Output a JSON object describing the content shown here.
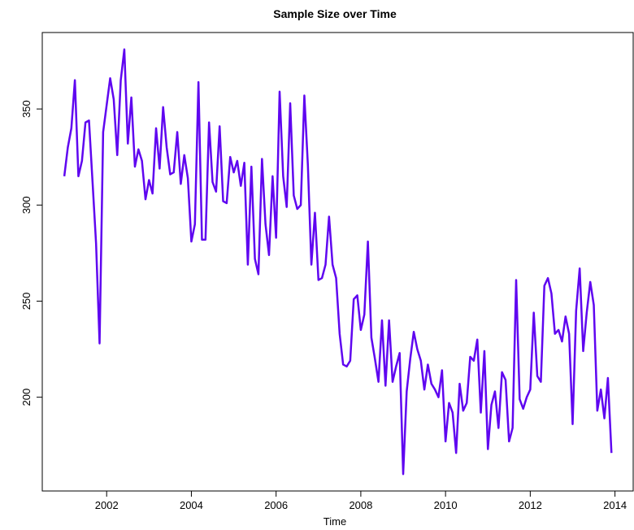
{
  "chart_data": {
    "type": "line",
    "title": "Sample Size over Time",
    "x_label": "Time",
    "x": [
      2001,
      2001.083,
      2001.167,
      2001.25,
      2001.333,
      2001.417,
      2001.5,
      2001.583,
      2001.667,
      2001.75,
      2001.833,
      2001.917,
      2002,
      2002.083,
      2002.167,
      2002.25,
      2002.333,
      2002.417,
      2002.5,
      2002.583,
      2002.667,
      2002.75,
      2002.833,
      2002.917,
      2003,
      2003.083,
      2003.167,
      2003.25,
      2003.333,
      2003.417,
      2003.5,
      2003.583,
      2003.667,
      2003.75,
      2003.833,
      2003.917,
      2004,
      2004.083,
      2004.167,
      2004.25,
      2004.333,
      2004.417,
      2004.5,
      2004.583,
      2004.667,
      2004.75,
      2004.833,
      2004.917,
      2005,
      2005.083,
      2005.167,
      2005.25,
      2005.333,
      2005.417,
      2005.5,
      2005.583,
      2005.667,
      2005.75,
      2005.833,
      2005.917,
      2006,
      2006.083,
      2006.167,
      2006.25,
      2006.333,
      2006.417,
      2006.5,
      2006.583,
      2006.667,
      2006.75,
      2006.833,
      2006.917,
      2007,
      2007.083,
      2007.167,
      2007.25,
      2007.333,
      2007.417,
      2007.5,
      2007.583,
      2007.667,
      2007.75,
      2007.833,
      2007.917,
      2008,
      2008.083,
      2008.167,
      2008.25,
      2008.333,
      2008.417,
      2008.5,
      2008.583,
      2008.667,
      2008.75,
      2008.833,
      2008.917,
      2009,
      2009.083,
      2009.167,
      2009.25,
      2009.333,
      2009.417,
      2009.5,
      2009.583,
      2009.667,
      2009.75,
      2009.833,
      2009.917,
      2010,
      2010.083,
      2010.167,
      2010.25,
      2010.333,
      2010.417,
      2010.5,
      2010.583,
      2010.667,
      2010.75,
      2010.833,
      2010.917,
      2011,
      2011.083,
      2011.167,
      2011.25,
      2011.333,
      2011.417,
      2011.5,
      2011.583,
      2011.667,
      2011.75,
      2011.833,
      2011.917,
      2012,
      2012.083,
      2012.167,
      2012.25,
      2012.333,
      2012.417,
      2012.5,
      2012.583,
      2012.667,
      2012.75,
      2012.833,
      2012.917,
      2013,
      2013.083,
      2013.167,
      2013.25,
      2013.333,
      2013.417,
      2013.5,
      2013.583,
      2013.667,
      2013.75,
      2013.833,
      2013.917
    ],
    "series": [
      {
        "color": "#5f06f0",
        "values": [
          315,
          330,
          340,
          365,
          315,
          323,
          343,
          344,
          312,
          280,
          228,
          338,
          352,
          366,
          355,
          326,
          365,
          381,
          332,
          356,
          320,
          329,
          323,
          303,
          313,
          306,
          340,
          319,
          351,
          330,
          316,
          317,
          338,
          311,
          326,
          314,
          281,
          290,
          364,
          282,
          282,
          343,
          312,
          307,
          341,
          302,
          301,
          325,
          317,
          323,
          310,
          322,
          269,
          320,
          272,
          264,
          324,
          290,
          274,
          315,
          283,
          359,
          315,
          299,
          353,
          305,
          298,
          300,
          357,
          321,
          269,
          296,
          261,
          262,
          269,
          294,
          269,
          262,
          233,
          217,
          216,
          219,
          251,
          253,
          235,
          243,
          281,
          231,
          220,
          208,
          240,
          206,
          240,
          208,
          216,
          223,
          160,
          203,
          220,
          234,
          225,
          219,
          204,
          217,
          207,
          204,
          200,
          214,
          177,
          197,
          192,
          171,
          207,
          193,
          197,
          221,
          219,
          230,
          192,
          224,
          173,
          196,
          203,
          184,
          213,
          209,
          177,
          184,
          261,
          199,
          194,
          200,
          204,
          244,
          211,
          208,
          258,
          262,
          254,
          233,
          235,
          229,
          242,
          233,
          186,
          245,
          267,
          224,
          244,
          260,
          248,
          193,
          204,
          189,
          210,
          171
        ]
      }
    ],
    "xlim": [
      2000.48,
      2014.43
    ],
    "ylim": [
      151.2,
      389.8
    ],
    "xticks": [
      2002,
      2004,
      2006,
      2008,
      2010,
      2012,
      2014
    ],
    "yticks": [
      200,
      250,
      300,
      350
    ]
  }
}
